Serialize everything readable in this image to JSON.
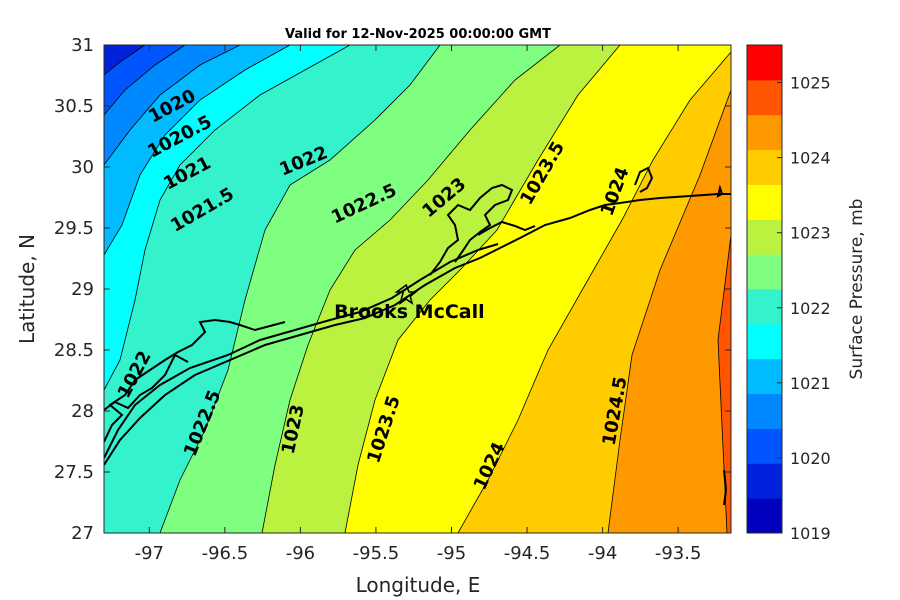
{
  "title": "Valid for 12-Nov-2025 00:00:00 GMT",
  "x_axis": {
    "label": "Longitude, E",
    "min": -97.3,
    "max": -93.15,
    "ticks": [
      -97,
      -96.5,
      -96,
      -95.5,
      -95,
      -94.5,
      -94,
      -93.5
    ],
    "tick_labels": [
      "-97",
      "-96.5",
      "-96",
      "-95.5",
      "-95",
      "-94.5",
      "-94",
      "-93.5"
    ]
  },
  "y_axis": {
    "label": "Latitude, N",
    "min": 27,
    "max": 31,
    "ticks": [
      27,
      27.5,
      28,
      28.5,
      29,
      29.5,
      30,
      30.5,
      31
    ],
    "tick_labels": [
      "27",
      "27.5",
      "28",
      "28.5",
      "29",
      "29.5",
      "30",
      "30.5",
      "31"
    ]
  },
  "colorbar": {
    "label": "Surface Pressure, mb",
    "min": 1019,
    "max": 1025.5,
    "ticks": [
      1019,
      1020,
      1021,
      1022,
      1023,
      1024,
      1025
    ],
    "tick_labels": [
      "1019",
      "1020",
      "1021",
      "1022",
      "1023",
      "1024",
      "1025"
    ],
    "colors": [
      "#0000be",
      "#0022dd",
      "#0055ff",
      "#0088ff",
      "#00bbff",
      "#00ffff",
      "#33f2cc",
      "#7fff7f",
      "#bbf23f",
      "#ffff00",
      "#ffcc00",
      "#ff9900",
      "#ff5500",
      "#ff0000"
    ]
  },
  "station": {
    "name": "Brooks McCall",
    "lon": -95.3,
    "lat": 28.95
  },
  "contour_labels": [
    {
      "text": "1020",
      "lon": -96.85,
      "lat": 30.5,
      "angle": -28
    },
    {
      "text": "1020.5",
      "lon": -96.8,
      "lat": 30.25,
      "angle": -28
    },
    {
      "text": "1021",
      "lon": -96.75,
      "lat": 29.95,
      "angle": -28
    },
    {
      "text": "1021.5",
      "lon": -96.65,
      "lat": 29.65,
      "angle": -30
    },
    {
      "text": "1022",
      "lon": -95.98,
      "lat": 30.05,
      "angle": -22
    },
    {
      "text": "1022.5",
      "lon": -95.58,
      "lat": 29.7,
      "angle": -25
    },
    {
      "text": "1023",
      "lon": -95.05,
      "lat": 29.75,
      "angle": -40
    },
    {
      "text": "1023.5",
      "lon": -94.4,
      "lat": 29.95,
      "angle": -60
    },
    {
      "text": "1024",
      "lon": -93.92,
      "lat": 29.8,
      "angle": -70
    },
    {
      "text": "1022",
      "lon": -97.1,
      "lat": 28.3,
      "angle": -62
    },
    {
      "text": "1022.5",
      "lon": -96.65,
      "lat": 27.9,
      "angle": -68
    },
    {
      "text": "1023",
      "lon": -96.05,
      "lat": 27.85,
      "angle": -78
    },
    {
      "text": "1023.5",
      "lon": -95.45,
      "lat": 27.85,
      "angle": -72
    },
    {
      "text": "1024",
      "lon": -94.75,
      "lat": 27.55,
      "angle": -65
    },
    {
      "text": "1024.5",
      "lon": -93.92,
      "lat": 28.0,
      "angle": -80
    }
  ]
}
